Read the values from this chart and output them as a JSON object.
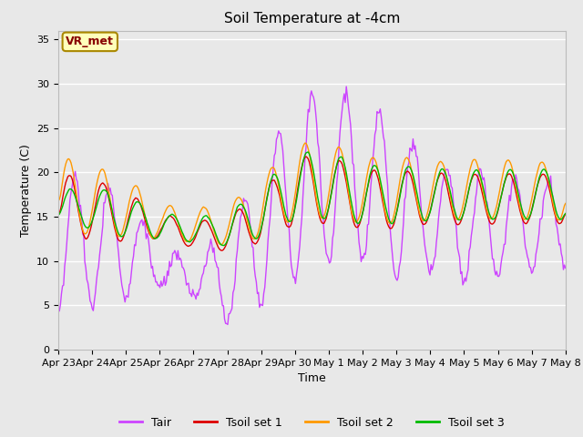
{
  "title": "Soil Temperature at -4cm",
  "xlabel": "Time",
  "ylabel": "Temperature (C)",
  "ylim": [
    0,
    36
  ],
  "yticks": [
    0,
    5,
    10,
    15,
    20,
    25,
    30,
    35
  ],
  "fig_bg_color": "#e8e8e8",
  "plot_bg_color": "#e8e8e8",
  "line_colors": {
    "Tair": "#cc44ff",
    "Tsoil set 1": "#dd0000",
    "Tsoil set 2": "#ff9900",
    "Tsoil set 3": "#00bb00"
  },
  "annotation_text": "VR_met",
  "annotation_color": "#880000",
  "annotation_bg": "#ffffbb",
  "annotation_edge": "#aa8800",
  "x_tick_labels": [
    "Apr 23",
    "Apr 24",
    "Apr 25",
    "Apr 26",
    "Apr 27",
    "Apr 28",
    "Apr 29",
    "Apr 30",
    "May 1",
    "May 2",
    "May 3",
    "May 4",
    "May 5",
    "May 6",
    "May 7",
    "May 8"
  ],
  "legend_labels": [
    "Tair",
    "Tsoil set 1",
    "Tsoil set 2",
    "Tsoil set 3"
  ],
  "title_fontsize": 11,
  "label_fontsize": 9,
  "tick_fontsize": 8,
  "legend_fontsize": 9
}
